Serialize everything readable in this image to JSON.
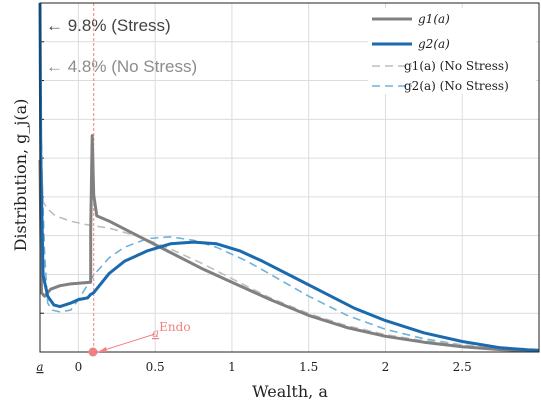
{
  "chart_data": {
    "type": "line",
    "title": "",
    "xlabel": "Wealth, a",
    "ylabel": "Distribution, g_j(a)",
    "xlim": [
      -0.25,
      3.0
    ],
    "ylim": [
      0,
      1
    ],
    "grid": true,
    "legend_position": "top-right",
    "x_tick_labels": [
      "a",
      "0",
      "0.5",
      "1",
      "1.5",
      "2",
      "2.5"
    ],
    "x_ticks": [
      -0.25,
      0,
      0.5,
      1,
      1.5,
      2,
      2.5
    ],
    "vline_x": 0.1,
    "series": [
      {
        "name": "g1(a)",
        "color": "#808080",
        "dash": "solid",
        "points": [
          [
            -0.25,
            0.55
          ],
          [
            -0.24,
            0.17
          ],
          [
            -0.22,
            0.16
          ],
          [
            -0.18,
            0.18
          ],
          [
            -0.12,
            0.19
          ],
          [
            -0.05,
            0.195
          ],
          [
            0.08,
            0.2
          ],
          [
            0.08,
            0.35
          ],
          [
            0.09,
            0.62
          ],
          [
            0.1,
            0.45
          ],
          [
            0.12,
            0.39
          ],
          [
            0.2,
            0.375
          ],
          [
            0.4,
            0.33
          ],
          [
            0.6,
            0.285
          ],
          [
            0.8,
            0.24
          ],
          [
            1.0,
            0.2
          ],
          [
            1.25,
            0.15
          ],
          [
            1.5,
            0.105
          ],
          [
            1.75,
            0.07
          ],
          [
            2.0,
            0.045
          ],
          [
            2.25,
            0.028
          ],
          [
            2.5,
            0.015
          ],
          [
            2.75,
            0.007
          ],
          [
            3.0,
            0.003
          ]
        ]
      },
      {
        "name": "g2(a)",
        "color": "#1a6aad",
        "dash": "solid",
        "points": [
          [
            -0.25,
            1.0
          ],
          [
            -0.245,
            0.55
          ],
          [
            -0.23,
            0.22
          ],
          [
            -0.2,
            0.16
          ],
          [
            -0.16,
            0.135
          ],
          [
            -0.12,
            0.13
          ],
          [
            -0.05,
            0.14
          ],
          [
            0.0,
            0.15
          ],
          [
            0.06,
            0.155
          ],
          [
            0.08,
            0.165
          ],
          [
            0.1,
            0.17
          ],
          [
            0.2,
            0.225
          ],
          [
            0.3,
            0.26
          ],
          [
            0.45,
            0.29
          ],
          [
            0.6,
            0.31
          ],
          [
            0.75,
            0.315
          ],
          [
            0.9,
            0.31
          ],
          [
            1.05,
            0.29
          ],
          [
            1.2,
            0.26
          ],
          [
            1.4,
            0.215
          ],
          [
            1.6,
            0.17
          ],
          [
            1.8,
            0.125
          ],
          [
            2.0,
            0.09
          ],
          [
            2.25,
            0.055
          ],
          [
            2.5,
            0.03
          ],
          [
            2.75,
            0.012
          ],
          [
            3.0,
            0.004
          ]
        ]
      },
      {
        "name": "g1(a) (No Stress)",
        "color": "#bdbdbd",
        "dash": "dashed",
        "points": [
          [
            -0.24,
            0.55
          ],
          [
            -0.23,
            0.43
          ],
          [
            -0.2,
            0.41
          ],
          [
            -0.15,
            0.39
          ],
          [
            -0.05,
            0.375
          ],
          [
            0.05,
            0.365
          ],
          [
            0.2,
            0.355
          ],
          [
            0.4,
            0.33
          ],
          [
            0.6,
            0.295
          ],
          [
            0.8,
            0.255
          ],
          [
            1.0,
            0.21
          ],
          [
            1.25,
            0.155
          ],
          [
            1.5,
            0.11
          ],
          [
            1.75,
            0.075
          ],
          [
            2.0,
            0.05
          ],
          [
            2.25,
            0.032
          ],
          [
            2.5,
            0.02
          ],
          [
            2.75,
            0.012
          ],
          [
            3.0,
            0.008
          ]
        ]
      },
      {
        "name": "g2(a) (No Stress)",
        "color": "#6fb3d9",
        "dash": "dashed",
        "points": [
          [
            -0.24,
            0.6
          ],
          [
            -0.235,
            0.48
          ],
          [
            -0.22,
            0.28
          ],
          [
            -0.2,
            0.14
          ],
          [
            -0.17,
            0.12
          ],
          [
            -0.12,
            0.115
          ],
          [
            -0.05,
            0.12
          ],
          [
            0.0,
            0.15
          ],
          [
            0.1,
            0.22
          ],
          [
            0.2,
            0.27
          ],
          [
            0.3,
            0.3
          ],
          [
            0.45,
            0.325
          ],
          [
            0.6,
            0.33
          ],
          [
            0.75,
            0.32
          ],
          [
            0.9,
            0.3
          ],
          [
            1.1,
            0.26
          ],
          [
            1.3,
            0.21
          ],
          [
            1.5,
            0.16
          ],
          [
            1.75,
            0.105
          ],
          [
            2.0,
            0.065
          ],
          [
            2.25,
            0.038
          ],
          [
            2.5,
            0.02
          ],
          [
            2.75,
            0.01
          ],
          [
            3.0,
            0.005
          ]
        ]
      }
    ],
    "annotations": {
      "stress": "← 9.8% (Stress)",
      "no_stress": "← 4.8% (No Stress)",
      "endo_label": "a",
      "endo_sup": "Endo"
    }
  },
  "colors": {
    "stress_text": "#444444",
    "no_stress_text": "#8c8c8c",
    "endo": "#f08080",
    "grid": "#dcdcdc"
  }
}
